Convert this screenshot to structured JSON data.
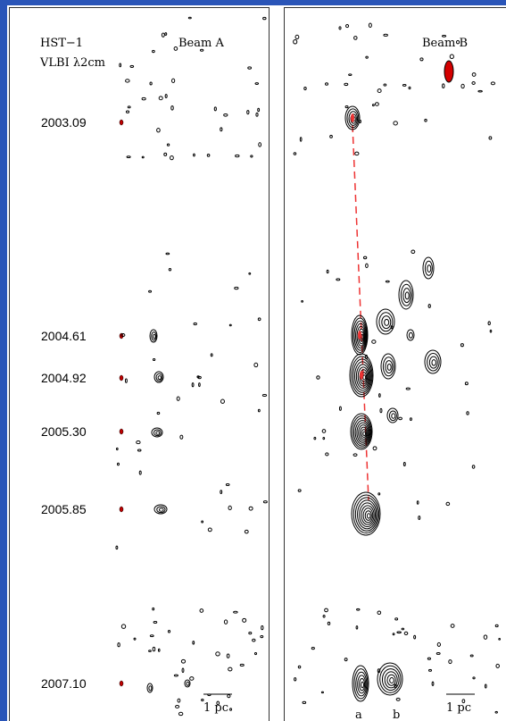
{
  "panel_a": {
    "source": "HST−1",
    "instrument": "VLBI λ2cm",
    "title": "Beam A",
    "epochs": [
      "2003.09",
      "2004.61",
      "2004.92",
      "2005.30",
      "2005.85",
      "2007.10"
    ],
    "scale_bar": "1 pc"
  },
  "panel_b": {
    "title": "Beam B",
    "scale_bar": "1 pc",
    "component_labels": [
      "a",
      "b"
    ]
  }
}
